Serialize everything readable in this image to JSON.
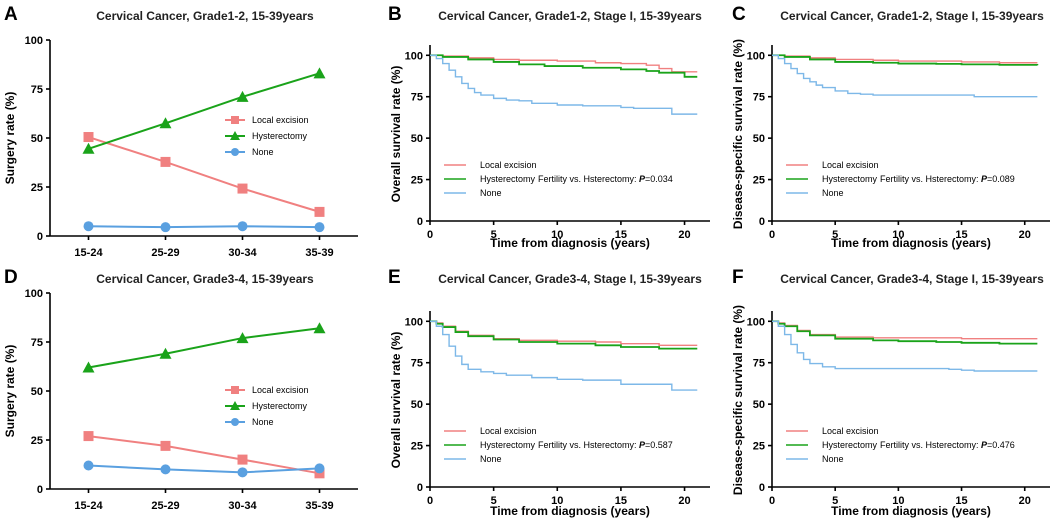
{
  "colors": {
    "local": "#f08080",
    "hyster": "#1aa31a",
    "none": "#5aa0e0",
    "ws": "#7db8e8"
  },
  "chart_data": [
    {
      "id": "A",
      "type": "line",
      "title": "Cervical Cancer, Grade1-2, 15-39years",
      "ylabel": "Surgery rate (%)",
      "xlabel": "",
      "categories": [
        "15-24",
        "25-29",
        "30-34",
        "35-39"
      ],
      "ylim": [
        0,
        100
      ],
      "yticks": [
        0,
        25,
        50,
        75,
        100
      ],
      "series": [
        {
          "name": "Local excision",
          "values": [
            50.5,
            37.8,
            24.2,
            12.3
          ]
        },
        {
          "name": "Hysterectomy",
          "values": [
            44.5,
            57.5,
            71,
            83
          ]
        },
        {
          "name": "None",
          "values": [
            5,
            4.5,
            5,
            4.5
          ]
        }
      ]
    },
    {
      "id": "B",
      "type": "line",
      "title": "Cervical Cancer,  Grade1-2, Stage I, 15-39years",
      "ylabel": "Overall survival rate (%)",
      "xlabel": "Time from diagnosis (years)",
      "xlim": [
        0,
        22
      ],
      "xticks": [
        0,
        5,
        10,
        15,
        20
      ],
      "ylim": [
        0,
        105
      ],
      "yticks": [
        0,
        25,
        50,
        75,
        100
      ],
      "annotation": "Fertility vs. Hsterectomy: P=0.034",
      "series": [
        {
          "name": "Local excision",
          "x": [
            0,
            1,
            3,
            5,
            7,
            10,
            13,
            15,
            17,
            18,
            19,
            21
          ],
          "y": [
            100,
            99.5,
            98.5,
            97.5,
            97,
            96.5,
            95.5,
            95,
            94,
            92,
            90,
            90
          ]
        },
        {
          "name": "Hysterectomy",
          "x": [
            0,
            1,
            3,
            5,
            7,
            9,
            12,
            15,
            17,
            18,
            20,
            21
          ],
          "y": [
            100,
            99,
            97.5,
            96,
            94.5,
            93.5,
            92.5,
            91.5,
            90.5,
            89.5,
            87,
            87
          ]
        },
        {
          "name": "None",
          "x": [
            0,
            0.5,
            1,
            1.5,
            2,
            2.5,
            3,
            3.5,
            4,
            5,
            6,
            7,
            8,
            10,
            12,
            13,
            15,
            16,
            18,
            19,
            20,
            21
          ],
          "y": [
            100,
            98,
            95,
            91,
            87,
            83,
            80,
            77.5,
            76,
            74,
            73,
            72.5,
            71,
            70,
            69.5,
            69.5,
            68.5,
            68,
            68,
            64.5,
            64.5,
            64.5
          ]
        }
      ]
    },
    {
      "id": "C",
      "type": "line",
      "title": "Cervical Cancer,  Grade1-2, Stage I, 15-39years",
      "ylabel": "Disease-specific survival rate (%)",
      "xlabel": "Time from diagnosis (years)",
      "xlim": [
        0,
        22
      ],
      "xticks": [
        0,
        5,
        10,
        15,
        20
      ],
      "ylim": [
        0,
        105
      ],
      "yticks": [
        0,
        25,
        50,
        75,
        100
      ],
      "annotation": "Fertility vs. Hsterectomy: P=0.089",
      "series": [
        {
          "name": "Local excision",
          "x": [
            0,
            1,
            3,
            5,
            8,
            10,
            13,
            15,
            18,
            21
          ],
          "y": [
            100,
            99.5,
            98.5,
            97.5,
            97,
            96.5,
            96.5,
            96,
            95.5,
            95.5
          ]
        },
        {
          "name": "Hysterectomy",
          "x": [
            0,
            1,
            3,
            5,
            8,
            10,
            13,
            15,
            18,
            21
          ],
          "y": [
            100,
            99,
            97.5,
            96,
            95.5,
            95,
            94.8,
            94.5,
            94.2,
            94
          ]
        },
        {
          "name": "None",
          "x": [
            0,
            0.5,
            1,
            1.5,
            2,
            2.5,
            3,
            3.5,
            4,
            5,
            6,
            7,
            8,
            10,
            12,
            14,
            15,
            16,
            18,
            21
          ],
          "y": [
            100,
            98,
            95,
            92,
            89,
            86,
            84,
            82,
            80.5,
            78.5,
            77,
            76.5,
            76,
            76,
            76,
            76,
            76,
            75,
            75,
            75
          ]
        }
      ]
    },
    {
      "id": "D",
      "type": "line",
      "title": "Cervical Cancer, Grade3-4, 15-39years",
      "ylabel": "Surgery rate (%)",
      "xlabel": "",
      "categories": [
        "15-24",
        "25-29",
        "30-34",
        "35-39"
      ],
      "ylim": [
        0,
        100
      ],
      "yticks": [
        0,
        25,
        50,
        75,
        100
      ],
      "series": [
        {
          "name": "Local excision",
          "values": [
            27,
            22,
            15,
            8
          ]
        },
        {
          "name": "Hysterectomy",
          "values": [
            62,
            69,
            77,
            82
          ]
        },
        {
          "name": "None",
          "values": [
            12,
            10,
            8.5,
            10.5
          ]
        }
      ]
    },
    {
      "id": "E",
      "type": "line",
      "title": "Cervical Cancer,  Grade3-4, Stage I, 15-39years",
      "ylabel": "Overall survival rate (%)",
      "xlabel": "Time from diagnosis (years)",
      "xlim": [
        0,
        22
      ],
      "xticks": [
        0,
        5,
        10,
        15,
        20
      ],
      "ylim": [
        0,
        105
      ],
      "yticks": [
        0,
        25,
        50,
        75,
        100
      ],
      "annotation": "Fertility vs. Hsterectomy: P=0.587",
      "series": [
        {
          "name": "Local excision",
          "x": [
            0,
            0.5,
            1,
            2,
            3,
            5,
            7,
            10,
            13,
            15,
            18,
            21
          ],
          "y": [
            100,
            99,
            97,
            94,
            91.5,
            89.5,
            88.5,
            88,
            87.5,
            86.5,
            85.5,
            85.5
          ]
        },
        {
          "name": "Hysterectomy",
          "x": [
            0,
            0.5,
            1,
            2,
            3,
            5,
            7,
            10,
            13,
            15,
            18,
            21
          ],
          "y": [
            100,
            98.5,
            96.5,
            93.5,
            91,
            89,
            87.5,
            86.5,
            85.5,
            84.5,
            83.5,
            83.5
          ]
        },
        {
          "name": "None",
          "x": [
            0,
            0.5,
            1,
            1.5,
            2,
            2.5,
            3,
            4,
            5,
            6,
            8,
            10,
            12,
            15,
            18,
            19,
            21
          ],
          "y": [
            100,
            97,
            92,
            85,
            79,
            74,
            71,
            69.5,
            68.5,
            67.5,
            66,
            65,
            64.5,
            62,
            62,
            58.5,
            58.5
          ]
        }
      ]
    },
    {
      "id": "F",
      "type": "line",
      "title": "Cervical Cancer,  Grade3-4, Stage I, 15-39years",
      "ylabel": "Disease-specific survival rate (%)",
      "xlabel": "Time from diagnosis (years)",
      "xlim": [
        0,
        22
      ],
      "xticks": [
        0,
        5,
        10,
        15,
        20
      ],
      "ylim": [
        0,
        105
      ],
      "yticks": [
        0,
        25,
        50,
        75,
        100
      ],
      "annotation": "Fertility vs. Hsterectomy: P=0.476",
      "series": [
        {
          "name": "Local excision",
          "x": [
            0,
            0.5,
            1,
            2,
            3,
            5,
            8,
            10,
            13,
            15,
            18,
            21
          ],
          "y": [
            100,
            99,
            97.5,
            94.5,
            92,
            90.5,
            90,
            90,
            90,
            89.5,
            89.5,
            89.5
          ]
        },
        {
          "name": "Hysterectomy",
          "x": [
            0,
            0.5,
            1,
            2,
            3,
            5,
            8,
            10,
            13,
            15,
            18,
            21
          ],
          "y": [
            100,
            98.5,
            97,
            94,
            91.5,
            89.5,
            88.5,
            88,
            87.5,
            87,
            86.5,
            86.5
          ]
        },
        {
          "name": "None",
          "x": [
            0,
            0.5,
            1,
            1.5,
            2,
            2.5,
            3,
            4,
            5,
            8,
            10,
            12,
            14,
            15,
            16,
            18,
            21
          ],
          "y": [
            100,
            97,
            92,
            86,
            81,
            77,
            74.5,
            72.5,
            71.5,
            71.5,
            71.5,
            71.5,
            71,
            70.5,
            70,
            70,
            70
          ]
        }
      ]
    }
  ]
}
